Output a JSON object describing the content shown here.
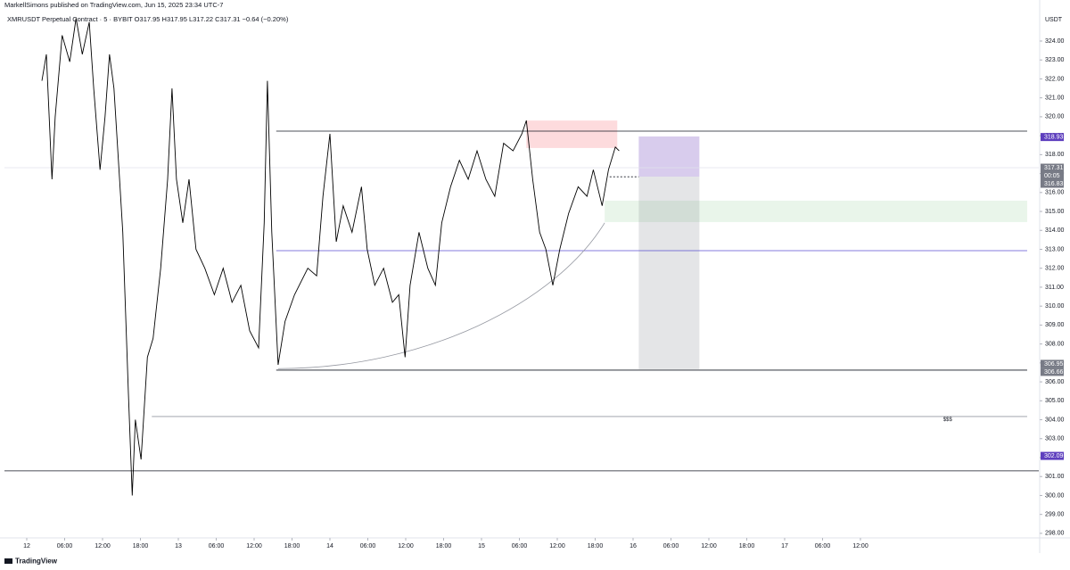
{
  "chart_data": {
    "type": "line",
    "title": "MarkellSimons published on TradingView.com, Jun 15, 2025 23:34 UTC-7",
    "subtitle": "XMRUSDT Perpetual Contract · 5 · BYBIT  O317.95 H317.95 L317.22 C317.31 −0.64 (−0.20%)",
    "y_axis_label": "USDT",
    "footer": "TradingView",
    "color": "#000000",
    "x": [
      2.4,
      3.1,
      4.0,
      4.5,
      5.6,
      6.8,
      7.8,
      8.8,
      9.9,
      10.6,
      11.6,
      12.4,
      13.1,
      13.8,
      14.7,
      15.2,
      16.1,
      16.7,
      17.2,
      18.1,
      19.1,
      20.0,
      21.2,
      22.3,
      23.0,
      23.7,
      24.7,
      25.7,
      26.8,
      28.2,
      29.7,
      31.1,
      32.5,
      33.9,
      35.3,
      36.7,
      37.6,
      38.1,
      38.8,
      39.8,
      40.9,
      42.4,
      44.5,
      45.9,
      46.9,
      48.0,
      49.0,
      50.1,
      51.5,
      53.0,
      53.9,
      55.1,
      56.5,
      57.9,
      58.9,
      59.9,
      60.7,
      62.1,
      63.5,
      64.7,
      65.7,
      67.1,
      68.5,
      69.9,
      71.3,
      72.7,
      74.1,
      75.5,
      77.0,
      78.4,
      79.1,
      80.1,
      81.2,
      82.2,
      83.3,
      84.4,
      85.8,
      87.3,
      88.7,
      89.7,
      91.1,
      92.1,
      93.2,
      93.8
    ],
    "values": [
      321.9,
      323.3,
      316.7,
      320,
      324.3,
      322.9,
      325.2,
      323.3,
      325,
      321.5,
      317.2,
      320,
      323.3,
      321.5,
      316.7,
      313.9,
      305.4,
      300,
      304,
      301.9,
      307.3,
      308.3,
      312,
      316.7,
      321.5,
      316.7,
      314.4,
      316.7,
      313,
      312,
      310.6,
      312,
      310.2,
      311.1,
      308.7,
      307.8,
      314.4,
      321.9,
      313.9,
      306.9,
      309.2,
      310.6,
      312,
      311.6,
      315.8,
      319.1,
      313.4,
      315.3,
      313.9,
      316.3,
      313,
      311.1,
      312,
      310.2,
      310.6,
      307.3,
      311.1,
      313.9,
      312,
      311.1,
      314.4,
      316.3,
      317.7,
      316.7,
      318.2,
      316.7,
      315.8,
      318.6,
      318.2,
      319.1,
      319.8,
      316.7,
      313.9,
      313,
      311.1,
      313,
      314.9,
      316.3,
      315.8,
      317.2,
      315.3,
      317.2,
      318.4,
      318.2
    ],
    "xlim": [
      -3.53,
      160.24
    ],
    "ylim": [
      297.76,
      325.46
    ],
    "xticks": [
      {
        "value": 0,
        "label": "12"
      },
      {
        "value": 6,
        "label": "06:00"
      },
      {
        "value": 12,
        "label": "12:00"
      },
      {
        "value": 18,
        "label": "18:00"
      },
      {
        "value": 24,
        "label": "13"
      },
      {
        "value": 30,
        "label": "06:00"
      },
      {
        "value": 36,
        "label": "12:00"
      },
      {
        "value": 42,
        "label": "18:00"
      },
      {
        "value": 48,
        "label": "14"
      },
      {
        "value": 54,
        "label": "06:00"
      },
      {
        "value": 60,
        "label": "12:00"
      },
      {
        "value": 66,
        "label": "18:00"
      },
      {
        "value": 72,
        "label": "15"
      },
      {
        "value": 78,
        "label": "06:00"
      },
      {
        "value": 84,
        "label": "12:00"
      },
      {
        "value": 90,
        "label": "18:00"
      },
      {
        "value": 96,
        "label": "16"
      },
      {
        "value": 102,
        "label": "06:00"
      },
      {
        "value": 108,
        "label": "12:00"
      },
      {
        "value": 114,
        "label": "18:00"
      },
      {
        "value": 120,
        "label": "17"
      },
      {
        "value": 126,
        "label": "06:00"
      },
      {
        "value": 132,
        "label": "12:00"
      }
    ],
    "yticks": [
      {
        "value": 298,
        "label": "298.00"
      },
      {
        "value": 299,
        "label": "299.00"
      },
      {
        "value": 300,
        "label": "300.00"
      },
      {
        "value": 301,
        "label": "301.00"
      },
      {
        "value": 302,
        "label": "302.00"
      },
      {
        "value": 303,
        "label": "303.00"
      },
      {
        "value": 304,
        "label": "304.00"
      },
      {
        "value": 305,
        "label": "305.00"
      },
      {
        "value": 306,
        "label": "306.00"
      },
      {
        "value": 307,
        "label": "307.00"
      },
      {
        "value": 308,
        "label": "308.00"
      },
      {
        "value": 309,
        "label": "309.00"
      },
      {
        "value": 310,
        "label": "310.00"
      },
      {
        "value": 311,
        "label": "311.00"
      },
      {
        "value": 312,
        "label": "312.00"
      },
      {
        "value": 313,
        "label": "313.00"
      },
      {
        "value": 314,
        "label": "314.00"
      },
      {
        "value": 315,
        "label": "315.00"
      },
      {
        "value": 316,
        "label": "316.00"
      },
      {
        "value": 317,
        "label": "317.00"
      },
      {
        "value": 318,
        "label": "318.00"
      },
      {
        "value": 319,
        "label": "319.00"
      },
      {
        "value": 320,
        "label": "320.00"
      },
      {
        "value": 321,
        "label": "321.00"
      },
      {
        "value": 322,
        "label": "322.00"
      },
      {
        "value": 323,
        "label": "323.00"
      },
      {
        "value": 324,
        "label": "324.00"
      }
    ],
    "levels": [
      {
        "price": 317.31,
        "from": -3.53,
        "to": 160.24,
        "color": "#e0e3eb"
      },
      {
        "price": 319.24,
        "from": 39.5,
        "to": 158.4,
        "color": "#131722"
      },
      {
        "price": 312.93,
        "from": 39.5,
        "to": 158.4,
        "color": "#5b4fd1"
      },
      {
        "price": 306.62,
        "from": 39.5,
        "to": 158.4,
        "color": "#131722"
      },
      {
        "price": 304.17,
        "from": 19.8,
        "to": 158.4,
        "color": "#9598a1"
      },
      {
        "price": 301.3,
        "from": -3.53,
        "to": 160.24,
        "color": "#131722"
      }
    ],
    "zones": [
      {
        "top": 319.8,
        "bottom": 318.35,
        "from": 79.1,
        "to": 93.5,
        "color": "rgba(242,54,69,0.18)"
      },
      {
        "top": 315.57,
        "bottom": 314.44,
        "from": 91.5,
        "to": 158.4,
        "color": "rgba(76,175,80,0.12)"
      },
      {
        "top": 318.96,
        "bottom": 316.84,
        "from": 96.9,
        "to": 106.5,
        "color": "rgba(126,87,194,0.3)"
      },
      {
        "top": 316.84,
        "bottom": 306.67,
        "from": 96.9,
        "to": 106.5,
        "color": "rgba(120,123,134,0.2)"
      }
    ],
    "entry_line": {
      "price": 316.83,
      "from": 92.3,
      "to": 96.9
    },
    "curve": {
      "start_x": 39.8,
      "start_price": 306.7,
      "end_x": 91.5,
      "end_price": 314.4
    },
    "note": {
      "text": "$$$",
      "x": 145.8,
      "price": 304.0
    },
    "price_labels": [
      {
        "price": 318.93,
        "color": "#5e3fbe"
      },
      {
        "price": 317.31,
        "color": "#787b86"
      },
      {
        "price": 316.83,
        "color": "#787b86"
      },
      {
        "price": 306.95,
        "color": "#787b86"
      },
      {
        "price": 306.66,
        "color": "#787b86"
      },
      {
        "price": 302.09,
        "color": "#5e3fbe"
      }
    ],
    "countdown": "00:05"
  }
}
